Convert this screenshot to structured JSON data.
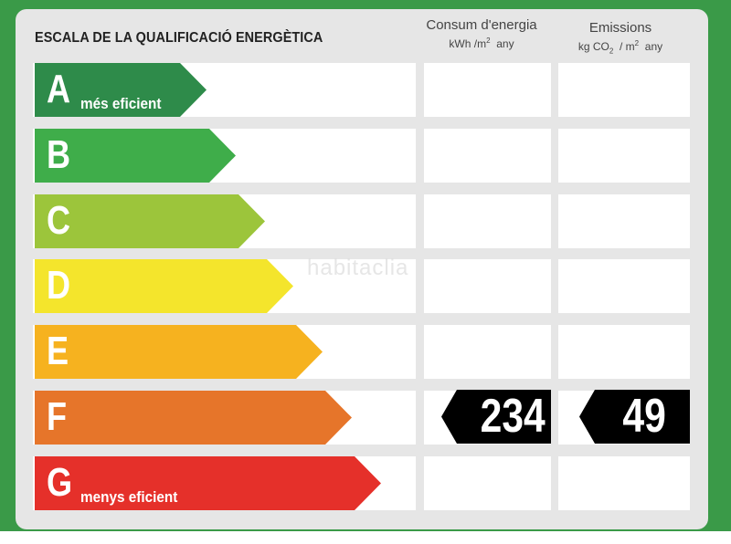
{
  "title": "ESCALA DE LA QUALIFICACIÓ ENERGÈTICA",
  "columns": {
    "consumption": {
      "label": "Consum d'energia",
      "unit_prefix": "kWh /m",
      "unit_exp": "2",
      "unit_suffix": "any"
    },
    "emissions": {
      "label": "Emissions",
      "unit_prefix": "kg CO",
      "unit_sub": "2",
      "unit_mid": "/ m",
      "unit_exp": "2",
      "unit_suffix": "any"
    }
  },
  "ratings": [
    {
      "letter": "A",
      "desc": "més eficient",
      "color": "#2e8b4a"
    },
    {
      "letter": "B",
      "desc": "",
      "color": "#3fad4a"
    },
    {
      "letter": "C",
      "desc": "",
      "color": "#9cc53b"
    },
    {
      "letter": "D",
      "desc": "",
      "color": "#f4e52c"
    },
    {
      "letter": "E",
      "desc": "",
      "color": "#f6b21f"
    },
    {
      "letter": "F",
      "desc": "",
      "color": "#e6752a"
    },
    {
      "letter": "G",
      "desc": "menys eficient",
      "color": "#e5302a"
    }
  ],
  "current": {
    "rating": "F",
    "consumption": "234",
    "emissions": "49"
  },
  "watermark": "habitaclia"
}
